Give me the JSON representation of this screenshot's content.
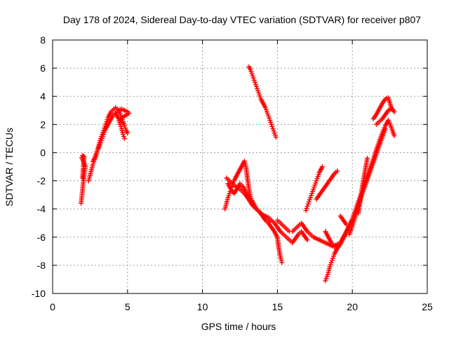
{
  "chart_data": {
    "type": "scatter",
    "title": "Day 178 of 2024, Sidereal Day-to-day VTEC variation (SDTVAR) for receiver p807",
    "xlabel": "GPS time / hours",
    "ylabel": "SDTVAR / TECUs",
    "xlim": [
      0,
      25
    ],
    "ylim": [
      -10,
      8
    ],
    "xticks": [
      0,
      5,
      10,
      15,
      20,
      25
    ],
    "yticks": [
      -10,
      -8,
      -6,
      -4,
      -2,
      0,
      2,
      4,
      6,
      8
    ],
    "grid": true,
    "marker": "plus",
    "color": "#ff0000",
    "series": [
      {
        "x": [
          1.9,
          1.95,
          2.0,
          2.05,
          2.1,
          2.15,
          2.2,
          1.95,
          2.0,
          2.05,
          2.1,
          2.0
        ],
        "y": [
          -3.6,
          -3.1,
          -2.6,
          -2.1,
          -1.6,
          -1.3,
          -1.0,
          -0.35,
          -0.2,
          -0.25,
          -0.3,
          -1.8
        ]
      },
      {
        "x": [
          2.4,
          2.5,
          2.6,
          2.7,
          2.8,
          2.9,
          3.0,
          3.1,
          3.2,
          3.3,
          3.4,
          3.5,
          3.6,
          3.7,
          3.8,
          3.9,
          4.0,
          4.1,
          4.2,
          4.3,
          4.4,
          4.5,
          4.6,
          4.7,
          4.8,
          4.9,
          5.0
        ],
        "y": [
          -2.0,
          -1.6,
          -1.2,
          -0.8,
          -0.5,
          -0.2,
          0.2,
          0.6,
          1.0,
          1.3,
          1.6,
          1.9,
          2.2,
          2.5,
          2.7,
          2.9,
          3.0,
          3.1,
          3.2,
          3.1,
          3.0,
          2.8,
          2.5,
          2.2,
          1.9,
          1.6,
          1.4
        ]
      },
      {
        "x": [
          2.7,
          2.8,
          2.9,
          3.0,
          3.1,
          3.2,
          3.3,
          3.4,
          3.5,
          3.6,
          3.7,
          3.8,
          3.9,
          4.0,
          4.1,
          4.2,
          4.3,
          4.4,
          4.5,
          4.6,
          4.7,
          4.8
        ],
        "y": [
          -0.6,
          -0.4,
          -0.1,
          0.2,
          0.4,
          0.7,
          1.0,
          1.3,
          1.6,
          1.8,
          2.0,
          2.2,
          2.4,
          2.6,
          2.7,
          2.8,
          2.6,
          2.4,
          2.0,
          1.7,
          1.3,
          1.0
        ]
      },
      {
        "x": [
          4.2,
          4.4,
          4.6,
          4.8,
          5.0,
          5.1,
          4.5,
          4.7
        ],
        "y": [
          2.8,
          3.0,
          3.1,
          3.0,
          2.9,
          2.8,
          2.4,
          2.1
        ]
      },
      {
        "x": [
          13.1,
          13.2,
          13.3,
          13.4,
          13.5,
          13.6,
          13.7,
          13.8,
          13.9,
          14.0,
          14.1,
          14.2,
          14.3,
          14.4,
          14.5,
          14.6,
          14.7,
          14.8,
          14.9
        ],
        "y": [
          6.1,
          5.9,
          5.6,
          5.3,
          5.0,
          4.7,
          4.4,
          4.1,
          3.8,
          3.6,
          3.4,
          3.2,
          2.9,
          2.6,
          2.3,
          2.0,
          1.7,
          1.4,
          1.1
        ]
      },
      {
        "x": [
          11.5,
          11.6,
          11.7,
          11.8,
          11.9,
          12.0,
          12.1,
          12.2,
          12.3,
          12.4,
          12.5,
          12.6,
          12.7,
          12.8,
          12.9,
          13.0,
          13.1,
          13.2,
          13.3,
          13.4,
          13.5,
          13.6,
          13.7,
          13.8,
          13.9,
          14.0,
          14.2,
          14.4,
          14.6,
          14.8,
          15.0,
          15.2,
          15.4,
          15.6,
          15.8,
          16.0,
          16.2,
          16.4,
          16.6,
          16.8,
          17.0
        ],
        "y": [
          -4.0,
          -3.6,
          -3.2,
          -2.9,
          -2.6,
          -2.3,
          -2.0,
          -1.8,
          -1.6,
          -1.4,
          -1.2,
          -1.0,
          -0.8,
          -0.6,
          -1.0,
          -1.8,
          -2.6,
          -3.1,
          -3.4,
          -3.6,
          -3.8,
          -4.0,
          -4.1,
          -4.2,
          -4.3,
          -4.4,
          -4.5,
          -4.6,
          -4.8,
          -5.0,
          -5.3,
          -5.6,
          -5.8,
          -6.0,
          -6.2,
          -6.4,
          -6.1,
          -5.8,
          -5.6,
          -5.9,
          -6.2
        ]
      },
      {
        "x": [
          11.6,
          11.8,
          12.0,
          12.2,
          12.4,
          12.6,
          12.8,
          13.0,
          13.2,
          13.4,
          13.6,
          13.8,
          14.0,
          14.2,
          14.4,
          14.6,
          14.8,
          15.0,
          15.1,
          15.2,
          15.3
        ],
        "y": [
          -1.8,
          -2.0,
          -2.2,
          -2.4,
          -2.5,
          -2.7,
          -2.9,
          -3.2,
          -3.5,
          -3.8,
          -4.0,
          -4.2,
          -4.5,
          -4.8,
          -5.0,
          -5.3,
          -5.6,
          -6.0,
          -6.8,
          -7.4,
          -7.8
        ]
      },
      {
        "x": [
          11.7,
          11.9,
          12.1,
          12.3,
          12.5,
          12.7,
          12.9,
          13.1,
          13.3,
          13.5,
          13.7,
          13.9,
          14.1,
          14.3,
          14.5
        ],
        "y": [
          -2.2,
          -2.6,
          -2.9,
          -2.6,
          -2.2,
          -2.4,
          -2.8,
          -3.3,
          -3.7,
          -3.9,
          -4.1,
          -4.3,
          -4.5,
          -4.7,
          -4.9
        ]
      },
      {
        "x": [
          15.0,
          15.2,
          15.4,
          15.6,
          15.8,
          16.0,
          16.2,
          16.4,
          16.6,
          16.8,
          17.0,
          17.2,
          17.4,
          17.6,
          17.8,
          18.0,
          18.2,
          18.4,
          18.6,
          18.8,
          19.0,
          19.2,
          19.4,
          19.6,
          19.8,
          20.0
        ],
        "y": [
          -4.8,
          -5.0,
          -5.2,
          -5.4,
          -5.6,
          -5.6,
          -5.4,
          -5.2,
          -5.0,
          -5.3,
          -5.6,
          -5.8,
          -6.0,
          -6.1,
          -6.2,
          -6.3,
          -6.4,
          -6.5,
          -6.6,
          -6.7,
          -6.6,
          -6.4,
          -6.0,
          -5.6,
          -5.2,
          -4.8
        ]
      },
      {
        "x": [
          16.9,
          17.0,
          17.1,
          17.2,
          17.3,
          17.4,
          17.5,
          17.6,
          17.7,
          17.8,
          17.9,
          18.0,
          18.2,
          18.4,
          18.6,
          18.8,
          19.0
        ],
        "y": [
          -4.1,
          -3.8,
          -3.5,
          -3.2,
          -2.9,
          -2.6,
          -2.3,
          -2.0,
          -1.7,
          -1.4,
          -1.2,
          -1.0,
          -5.6,
          -6.0,
          -6.4,
          -6.6,
          -6.5
        ]
      },
      {
        "x": [
          17.6,
          17.8,
          18.0,
          18.2,
          18.4,
          18.6,
          18.8,
          19.0,
          19.2,
          19.4,
          19.6
        ],
        "y": [
          -3.3,
          -3.0,
          -2.7,
          -2.4,
          -2.1,
          -1.8,
          -1.5,
          -1.3,
          -4.5,
          -4.8,
          -5.1
        ]
      },
      {
        "x": [
          18.2,
          18.3,
          18.4,
          18.5,
          18.6,
          18.7,
          18.8,
          18.9,
          19.0,
          19.2,
          19.4,
          19.6,
          19.8,
          20.0,
          20.2,
          20.4,
          20.6,
          20.8,
          21.0,
          21.2,
          21.4,
          21.6,
          21.8,
          22.0,
          22.2,
          22.4,
          22.6,
          22.8
        ],
        "y": [
          -9.1,
          -8.8,
          -8.5,
          -8.1,
          -7.8,
          -7.5,
          -7.2,
          -7.0,
          -6.8,
          -6.5,
          -6.1,
          -5.7,
          -5.2,
          -4.7,
          -4.1,
          -3.5,
          -2.9,
          -2.3,
          -1.7,
          -1.1,
          -0.5,
          0.2,
          0.8,
          1.4,
          1.9,
          2.3,
          1.8,
          1.2
        ]
      },
      {
        "x": [
          19.8,
          20.0,
          20.2,
          20.4,
          20.6,
          20.8,
          21.0,
          21.2,
          21.4,
          21.6,
          21.8,
          22.0,
          22.2
        ],
        "y": [
          -5.8,
          -5.2,
          -4.5,
          -3.8,
          -3.1,
          -2.5,
          -1.9,
          -1.3,
          -0.7,
          -0.1,
          0.5,
          1.1,
          1.7
        ]
      },
      {
        "x": [
          20.4,
          20.5,
          20.6,
          20.7,
          20.8,
          20.9,
          21.0
        ],
        "y": [
          -4.3,
          -3.6,
          -2.9,
          -2.2,
          -1.6,
          -1.0,
          -0.4
        ]
      },
      {
        "x": [
          21.4,
          21.6,
          21.8,
          22.0,
          22.2,
          22.4,
          22.6,
          22.8
        ],
        "y": [
          2.4,
          2.7,
          3.1,
          3.5,
          3.8,
          3.9,
          3.2,
          2.9
        ]
      },
      {
        "x": [
          21.6,
          21.8,
          22.0,
          22.2,
          22.4,
          22.6
        ],
        "y": [
          2.0,
          2.2,
          2.4,
          2.7,
          3.0,
          3.1
        ]
      }
    ]
  }
}
